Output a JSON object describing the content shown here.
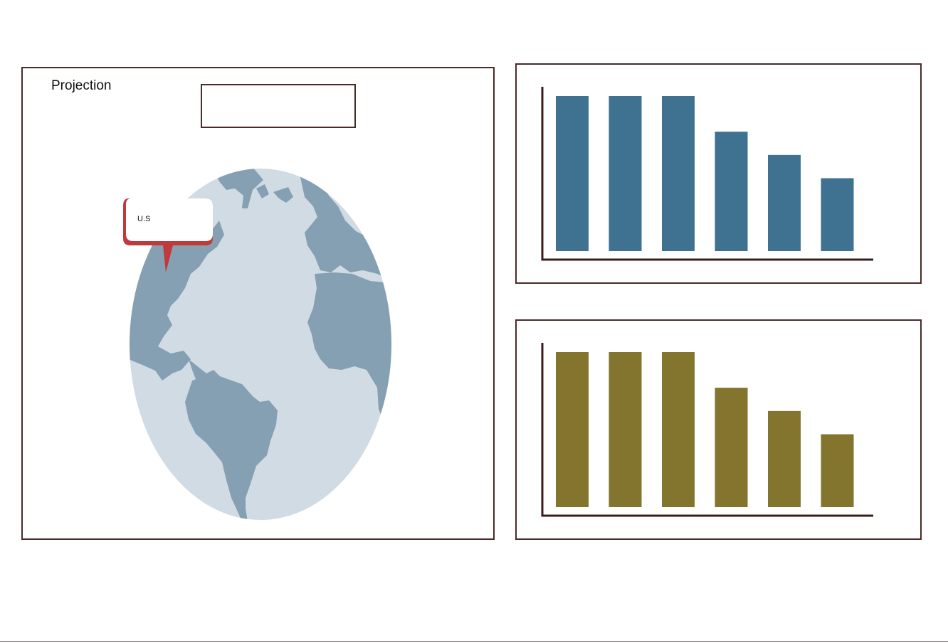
{
  "map_panel": {
    "title": "Projection",
    "input_value": "",
    "marker_label": "U.S",
    "colors": {
      "ocean": "#d1dbe3",
      "land": "#86a0b3",
      "marker": "#c0393b"
    }
  },
  "chart_data": [
    {
      "type": "bar",
      "categories": [
        "",
        "",
        "",
        "",
        "",
        ""
      ],
      "values": [
        100,
        100,
        100,
        77,
        62,
        47
      ],
      "ylim": [
        0,
        100
      ],
      "color": "#3e7290",
      "axis_color": "#3b1c1c",
      "grid": false
    },
    {
      "type": "bar",
      "categories": [
        "",
        "",
        "",
        "",
        "",
        ""
      ],
      "values": [
        100,
        100,
        100,
        77,
        62,
        47
      ],
      "ylim": [
        0,
        100
      ],
      "color": "#83752d",
      "axis_color": "#3b1c1c",
      "grid": false
    }
  ]
}
